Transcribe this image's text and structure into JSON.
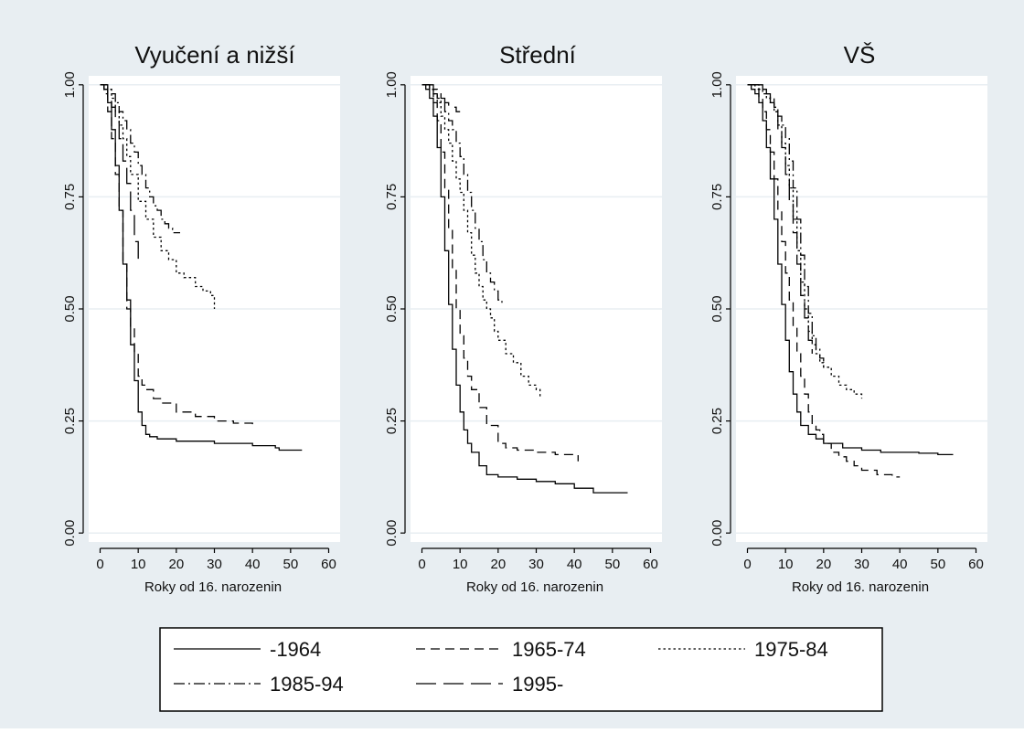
{
  "figure": {
    "background_color": "#e8eef2",
    "plot_color": "#ffffff",
    "line_color": "#000000",
    "grid_color": "#e8eef2"
  },
  "legend": {
    "placement": "bottom",
    "items": [
      {
        "name": "-1964",
        "style": "solid"
      },
      {
        "name": "1965-74",
        "style": "dashed"
      },
      {
        "name": "1975-84",
        "style": "dotted"
      },
      {
        "name": "1985-94",
        "style": "dashdot"
      },
      {
        "name": "1995-",
        "style": "longdash"
      }
    ]
  },
  "chart_data": [
    {
      "type": "line",
      "step": true,
      "title": "Vyučení a nižší",
      "xlabel": "Roky od 16. narozenin",
      "ylabel": "",
      "xlim": [
        -3,
        63
      ],
      "ylim": [
        -0.02,
        1.02
      ],
      "xticks": [
        0,
        10,
        20,
        30,
        40,
        50,
        60
      ],
      "yticks": [
        0,
        0.25,
        0.5,
        0.75,
        1
      ],
      "ytick_labels": [
        "0.00",
        "0.25",
        "0.50",
        "0.75",
        "1.00"
      ],
      "grid": true,
      "series": [
        {
          "name": "-1964",
          "style": "solid",
          "x": [
            0,
            1,
            2,
            3,
            4,
            5,
            6,
            7,
            8,
            9,
            10,
            11,
            12,
            13,
            15,
            20,
            30,
            40,
            46,
            47,
            53
          ],
          "y": [
            1,
            0.99,
            0.96,
            0.9,
            0.82,
            0.72,
            0.6,
            0.52,
            0.42,
            0.34,
            0.27,
            0.24,
            0.22,
            0.215,
            0.21,
            0.205,
            0.2,
            0.195,
            0.19,
            0.185,
            0.185
          ]
        },
        {
          "name": "1965-74",
          "style": "dashed",
          "x": [
            0,
            1,
            2,
            3,
            4,
            5,
            6,
            7,
            8,
            9,
            10,
            11,
            12,
            14,
            16,
            20,
            25,
            30,
            35,
            40
          ],
          "y": [
            1,
            0.98,
            0.94,
            0.88,
            0.8,
            0.72,
            0.6,
            0.5,
            0.46,
            0.4,
            0.35,
            0.33,
            0.32,
            0.3,
            0.29,
            0.27,
            0.26,
            0.25,
            0.245,
            0.24
          ]
        },
        {
          "name": "1975-84",
          "style": "dotted",
          "x": [
            0,
            2,
            3,
            4,
            5,
            6,
            7,
            8,
            10,
            12,
            14,
            16,
            18,
            20,
            22,
            25,
            27,
            29,
            30
          ],
          "y": [
            1,
            0.99,
            0.97,
            0.94,
            0.91,
            0.88,
            0.84,
            0.8,
            0.74,
            0.7,
            0.66,
            0.63,
            0.61,
            0.58,
            0.57,
            0.55,
            0.54,
            0.53,
            0.5
          ]
        },
        {
          "name": "1985-94",
          "style": "dashdot",
          "x": [
            0,
            2,
            3,
            4,
            5,
            6,
            7,
            8,
            9,
            10,
            11,
            12,
            13,
            14,
            15,
            16,
            17,
            18,
            19,
            20,
            21
          ],
          "y": [
            1,
            0.99,
            0.98,
            0.96,
            0.94,
            0.92,
            0.9,
            0.87,
            0.85,
            0.82,
            0.8,
            0.77,
            0.75,
            0.73,
            0.72,
            0.7,
            0.69,
            0.68,
            0.67,
            0.67,
            0.67
          ]
        },
        {
          "name": "1995-",
          "style": "longdash",
          "x": [
            0,
            1,
            2,
            3,
            4,
            5,
            6,
            7,
            8,
            9,
            10
          ],
          "y": [
            1,
            0.99,
            0.97,
            0.95,
            0.92,
            0.88,
            0.83,
            0.78,
            0.72,
            0.65,
            0.61
          ]
        }
      ]
    },
    {
      "type": "line",
      "step": true,
      "title": "Střední",
      "xlabel": "Roky od 16. narozenin",
      "ylabel": "",
      "xlim": [
        -3,
        63
      ],
      "ylim": [
        -0.02,
        1.02
      ],
      "xticks": [
        0,
        10,
        20,
        30,
        40,
        50,
        60
      ],
      "yticks": [
        0,
        0.25,
        0.5,
        0.75,
        1
      ],
      "ytick_labels": [
        "0.00",
        "0.25",
        "0.50",
        "0.75",
        "1.00"
      ],
      "grid": true,
      "series": [
        {
          "name": "-1964",
          "style": "solid",
          "x": [
            0,
            1,
            2,
            3,
            4,
            5,
            6,
            7,
            8,
            9,
            10,
            11,
            12,
            13,
            15,
            17,
            20,
            25,
            30,
            35,
            40,
            45,
            50,
            54
          ],
          "y": [
            1,
            0.99,
            0.97,
            0.93,
            0.86,
            0.75,
            0.63,
            0.51,
            0.41,
            0.33,
            0.27,
            0.23,
            0.2,
            0.18,
            0.15,
            0.13,
            0.125,
            0.12,
            0.115,
            0.11,
            0.1,
            0.09,
            0.09,
            0.09
          ]
        },
        {
          "name": "1965-74",
          "style": "dashed",
          "x": [
            0,
            2,
            3,
            4,
            5,
            6,
            7,
            8,
            9,
            10,
            11,
            12,
            13,
            15,
            17,
            20,
            22,
            25,
            30,
            35,
            40,
            41
          ],
          "y": [
            1,
            0.99,
            0.96,
            0.92,
            0.85,
            0.77,
            0.68,
            0.59,
            0.5,
            0.44,
            0.39,
            0.35,
            0.32,
            0.28,
            0.24,
            0.2,
            0.19,
            0.185,
            0.18,
            0.175,
            0.175,
            0.16
          ]
        },
        {
          "name": "1975-84",
          "style": "dotted",
          "x": [
            0,
            2,
            3,
            4,
            5,
            6,
            7,
            8,
            9,
            10,
            11,
            12,
            13,
            14,
            15,
            16,
            17,
            18,
            19,
            20,
            22,
            24,
            26,
            28,
            30,
            31
          ],
          "y": [
            1,
            0.99,
            0.98,
            0.96,
            0.93,
            0.9,
            0.87,
            0.83,
            0.79,
            0.76,
            0.72,
            0.67,
            0.62,
            0.58,
            0.55,
            0.52,
            0.5,
            0.48,
            0.45,
            0.43,
            0.4,
            0.38,
            0.35,
            0.33,
            0.32,
            0.3
          ]
        },
        {
          "name": "1985-94",
          "style": "dashdot",
          "x": [
            0,
            2,
            3,
            4,
            5,
            6,
            7,
            8,
            9,
            10,
            11,
            12,
            13,
            14,
            15,
            16,
            17,
            18,
            19,
            20,
            21
          ],
          "y": [
            1,
            0.99,
            0.98,
            0.97,
            0.96,
            0.94,
            0.92,
            0.9,
            0.87,
            0.84,
            0.8,
            0.76,
            0.72,
            0.68,
            0.65,
            0.61,
            0.58,
            0.56,
            0.54,
            0.52,
            0.51
          ]
        },
        {
          "name": "1995-",
          "style": "longdash",
          "x": [
            0,
            3,
            4,
            5,
            6,
            7,
            8,
            9,
            10
          ],
          "y": [
            1,
            0.99,
            0.98,
            0.97,
            0.96,
            0.95,
            0.95,
            0.94,
            0.94
          ]
        }
      ]
    },
    {
      "type": "line",
      "step": true,
      "title": "VŠ",
      "xlabel": "Roky od 16. narozenin",
      "ylabel": "",
      "xlim": [
        -3,
        63
      ],
      "ylim": [
        -0.02,
        1.02
      ],
      "xticks": [
        0,
        10,
        20,
        30,
        40,
        50,
        60
      ],
      "yticks": [
        0,
        0.25,
        0.5,
        0.75,
        1
      ],
      "ytick_labels": [
        "0.00",
        "0.25",
        "0.50",
        "0.75",
        "1.00"
      ],
      "grid": true,
      "series": [
        {
          "name": "-1964",
          "style": "solid",
          "x": [
            0,
            1,
            2,
            3,
            4,
            5,
            6,
            7,
            8,
            9,
            10,
            11,
            12,
            13,
            14,
            16,
            18,
            20,
            25,
            30,
            35,
            40,
            45,
            50,
            54
          ],
          "y": [
            1,
            0.99,
            0.98,
            0.96,
            0.92,
            0.86,
            0.79,
            0.7,
            0.6,
            0.51,
            0.43,
            0.36,
            0.31,
            0.27,
            0.24,
            0.22,
            0.21,
            0.2,
            0.19,
            0.185,
            0.18,
            0.18,
            0.178,
            0.175,
            0.175
          ]
        },
        {
          "name": "1965-74",
          "style": "dashed",
          "x": [
            0,
            2,
            3,
            4,
            5,
            6,
            7,
            8,
            9,
            10,
            11,
            12,
            13,
            14,
            15,
            16,
            17,
            18,
            19,
            20,
            22,
            24,
            26,
            28,
            30,
            34,
            38,
            40
          ],
          "y": [
            1,
            0.99,
            0.97,
            0.94,
            0.9,
            0.85,
            0.79,
            0.72,
            0.65,
            0.58,
            0.52,
            0.46,
            0.4,
            0.35,
            0.31,
            0.27,
            0.24,
            0.23,
            0.22,
            0.2,
            0.18,
            0.17,
            0.16,
            0.15,
            0.14,
            0.13,
            0.125,
            0.125
          ]
        },
        {
          "name": "1975-84",
          "style": "dotted",
          "x": [
            0,
            3,
            4,
            5,
            6,
            7,
            8,
            9,
            10,
            11,
            12,
            13,
            14,
            15,
            16,
            17,
            18,
            19,
            20,
            22,
            24,
            26,
            28,
            30
          ],
          "y": [
            1,
            0.99,
            0.98,
            0.97,
            0.96,
            0.94,
            0.91,
            0.87,
            0.82,
            0.77,
            0.7,
            0.63,
            0.56,
            0.5,
            0.45,
            0.42,
            0.4,
            0.38,
            0.37,
            0.35,
            0.33,
            0.32,
            0.31,
            0.3
          ]
        },
        {
          "name": "1985-94",
          "style": "dashdot",
          "x": [
            0,
            3,
            4,
            5,
            6,
            7,
            8,
            9,
            10,
            11,
            12,
            13,
            14,
            15,
            16,
            17,
            18,
            19,
            20,
            21
          ],
          "y": [
            1,
            0.99,
            0.99,
            0.98,
            0.97,
            0.95,
            0.93,
            0.91,
            0.88,
            0.83,
            0.77,
            0.7,
            0.62,
            0.55,
            0.49,
            0.44,
            0.41,
            0.39,
            0.37,
            0.37
          ]
        },
        {
          "name": "1995-",
          "style": "longdash",
          "x": [
            0,
            4,
            5,
            6,
            7,
            8,
            9,
            10,
            11,
            12,
            13,
            14,
            15,
            16,
            17
          ],
          "y": [
            1,
            0.99,
            0.98,
            0.96,
            0.94,
            0.9,
            0.86,
            0.8,
            0.74,
            0.67,
            0.6,
            0.53,
            0.48,
            0.43,
            0.4
          ]
        }
      ]
    }
  ]
}
